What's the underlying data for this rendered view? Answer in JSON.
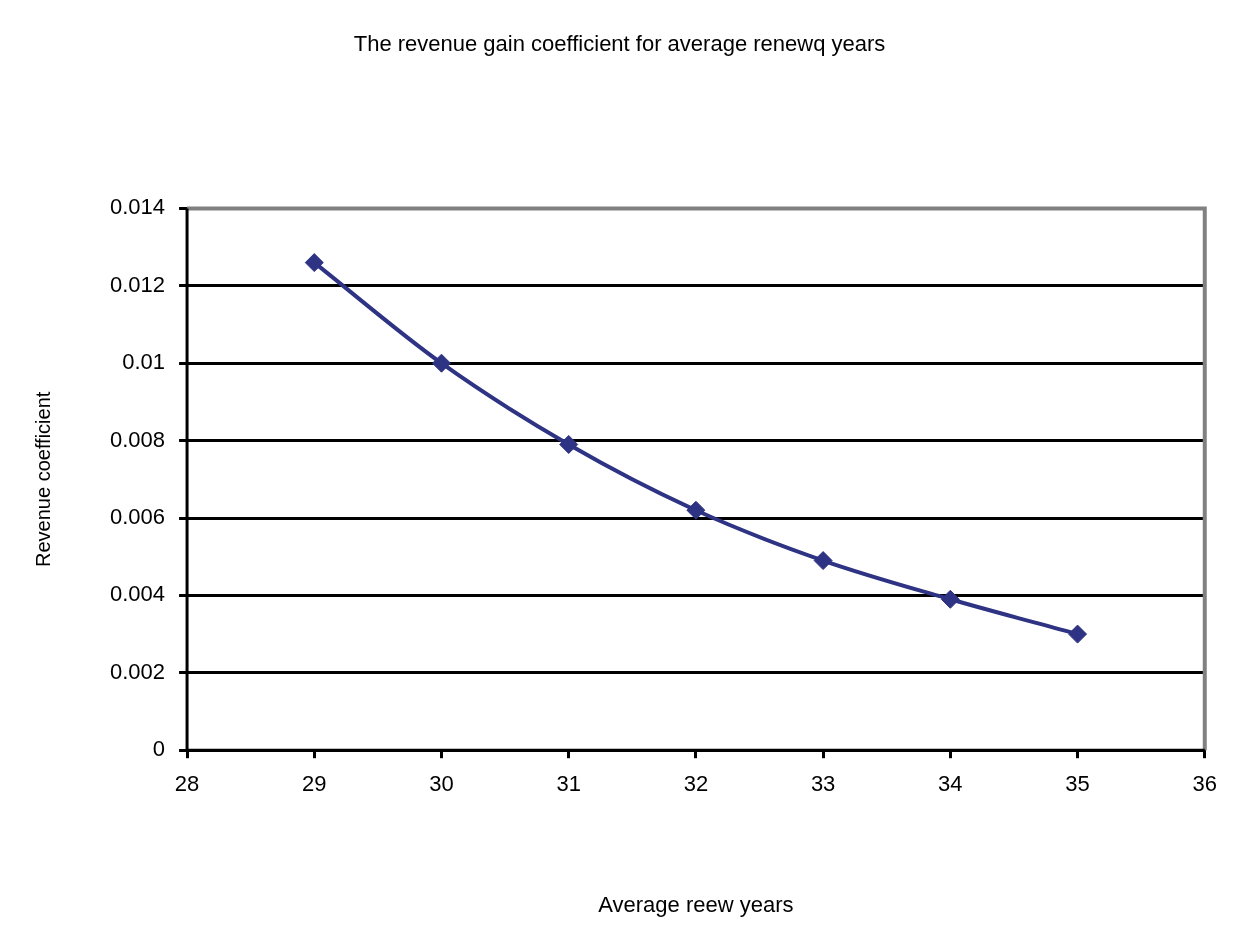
{
  "chart_data": {
    "type": "line",
    "title": "The revenue gain coefficient for average renewq years",
    "xlabel": "Average reew years",
    "ylabel": "Revenue coefficient",
    "x": [
      29,
      30,
      31,
      32,
      33,
      34,
      35
    ],
    "series": [
      {
        "color": "#2e3383",
        "values": [
          0.0126,
          0.01,
          0.0079,
          0.0062,
          0.0049,
          0.0039,
          0.003
        ]
      }
    ],
    "xlim": [
      28,
      36
    ],
    "xticks": [
      28,
      29,
      30,
      31,
      32,
      33,
      34,
      35,
      36
    ],
    "ylim": [
      0,
      0.014
    ],
    "yticks": [
      0,
      0.002,
      0.004,
      0.006,
      0.008,
      0.01,
      0.012,
      0.014
    ],
    "grid": "y",
    "legend": false,
    "marker": "diamond",
    "line_style": "solid"
  }
}
